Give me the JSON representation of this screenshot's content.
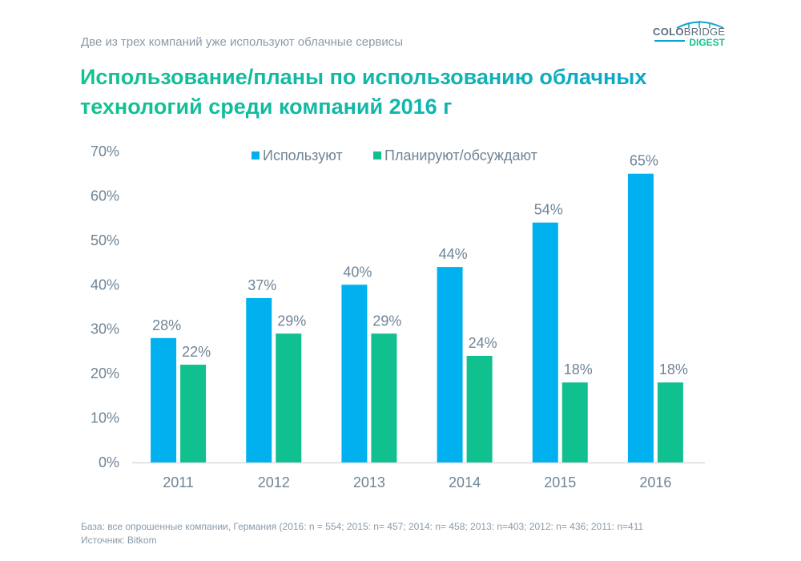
{
  "header": {
    "subtitle": "Две из трех компаний уже используют облачные сервисы",
    "title": "Использование/планы по использованию облачных технологий среди компаний 2016 г",
    "logo_top": "COLO",
    "logo_top2": "BRIDGE",
    "logo_bottom": "DIGEST"
  },
  "footer": {
    "base": "База: все опрошенные компании, Германия (2016: n = 554; 2015: n= 457; 2014: n= 458; 2013: n=403; 2012: n= 436; 2011: n=411",
    "source": "Источник: Bitkom"
  },
  "chart_data": {
    "type": "bar",
    "title": "Использование/планы по использованию облачных технологий среди компаний 2016 г",
    "xlabel": "",
    "ylabel": "",
    "categories": [
      "2011",
      "2012",
      "2013",
      "2014",
      "2015",
      "2016"
    ],
    "series": [
      {
        "name": "Используют",
        "color": "#00b0ef",
        "values": [
          28,
          37,
          40,
          44,
          54,
          65
        ]
      },
      {
        "name": "Планируют/обсуждают",
        "color": "#11c08f",
        "values": [
          22,
          29,
          29,
          24,
          18,
          18
        ]
      }
    ],
    "ylim": [
      0,
      70
    ],
    "yticks": [
      "0%",
      "10%",
      "20%",
      "30%",
      "40%",
      "50%",
      "60%",
      "70%"
    ],
    "value_suffix": "%",
    "grid": false,
    "legend": "top-center"
  }
}
